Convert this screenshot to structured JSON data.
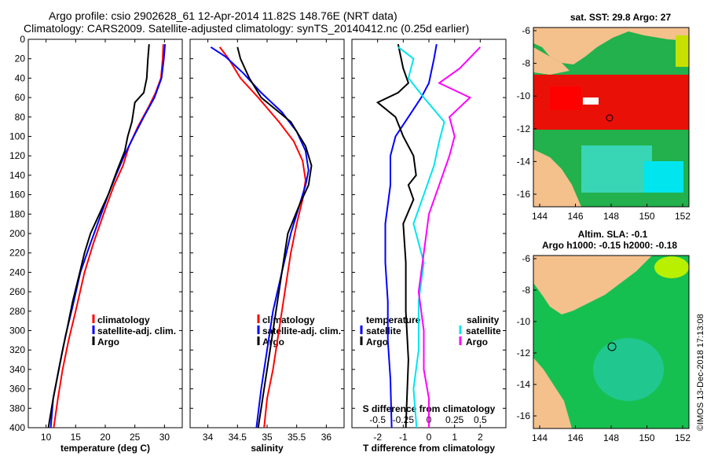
{
  "header": {
    "title_line1": "Argo profile: csio 2902628_61 12-Apr-2014 11.82S 148.76E (NRT data)",
    "title_line2": "Climatology: CARS2009. Satellite-adjusted climatology: synTS_20140412.nc (0.25d earlier)"
  },
  "colors": {
    "climatology": "#ff0000",
    "satellite": "#0000ff",
    "argo": "#000000",
    "salinity_satellite": "#00e5ee",
    "salinity_argo": "#ff00ff",
    "land": "#f4c08c"
  },
  "chart_data": [
    {
      "id": "temperature",
      "type": "line",
      "xlabel": "temperature (deg C)",
      "ylabel": "",
      "xlim": [
        7,
        33
      ],
      "ylim": [
        400,
        0
      ],
      "xticks": [
        "10",
        "15",
        "20",
        "25",
        "30"
      ],
      "xtick_values": [
        10,
        15,
        20,
        25,
        30
      ],
      "yticks": [
        "0",
        "20",
        "40",
        "60",
        "80",
        "100",
        "120",
        "140",
        "160",
        "180",
        "200",
        "220",
        "240",
        "260",
        "280",
        "300",
        "320",
        "340",
        "360",
        "380",
        "400"
      ],
      "ytick_values": [
        0,
        20,
        40,
        60,
        80,
        100,
        120,
        140,
        160,
        180,
        200,
        220,
        240,
        260,
        280,
        300,
        320,
        340,
        360,
        380,
        400
      ],
      "legend": [
        "climatology",
        "satellite-adj. clim.",
        "Argo"
      ],
      "series": [
        {
          "name": "climatology",
          "color": "#ff0000",
          "points": [
            [
              29.8,
              5
            ],
            [
              29.7,
              20
            ],
            [
              29.4,
              40
            ],
            [
              28.5,
              55
            ],
            [
              27.3,
              70
            ],
            [
              25.5,
              90
            ],
            [
              24.0,
              110
            ],
            [
              23.0,
              130
            ],
            [
              21.5,
              150
            ],
            [
              20.0,
              175
            ],
            [
              18.0,
              210
            ],
            [
              16.5,
              240
            ],
            [
              15.0,
              280
            ],
            [
              13.8,
              310
            ],
            [
              12.8,
              340
            ],
            [
              12.0,
              370
            ],
            [
              11.3,
              400
            ]
          ]
        },
        {
          "name": "satellite-adj. clim.",
          "color": "#0000ff",
          "points": [
            [
              30.1,
              5
            ],
            [
              29.9,
              20
            ],
            [
              29.5,
              40
            ],
            [
              28.3,
              60
            ],
            [
              26.5,
              80
            ],
            [
              24.8,
              100
            ],
            [
              23.2,
              120
            ],
            [
              21.8,
              140
            ],
            [
              20.5,
              160
            ],
            [
              19.0,
              185
            ],
            [
              17.5,
              210
            ],
            [
              15.8,
              240
            ],
            [
              14.5,
              275
            ],
            [
              13.3,
              305
            ],
            [
              12.3,
              335
            ],
            [
              11.2,
              370
            ],
            [
              10.8,
              400
            ]
          ]
        },
        {
          "name": "Argo",
          "color": "#000000",
          "points": [
            [
              27.4,
              5
            ],
            [
              27.2,
              20
            ],
            [
              27.0,
              40
            ],
            [
              26.5,
              55
            ],
            [
              25.0,
              65
            ],
            [
              24.5,
              85
            ],
            [
              23.8,
              100
            ],
            [
              23.3,
              115
            ],
            [
              22.0,
              135
            ],
            [
              20.5,
              160
            ],
            [
              19.0,
              180
            ],
            [
              17.5,
              200
            ],
            [
              16.5,
              220
            ],
            [
              15.5,
              245
            ],
            [
              14.5,
              270
            ],
            [
              13.5,
              300
            ],
            [
              12.8,
              320
            ],
            [
              12.0,
              345
            ],
            [
              11.2,
              370
            ],
            [
              10.4,
              400
            ]
          ]
        }
      ]
    },
    {
      "id": "salinity",
      "type": "line",
      "xlabel": "salinity",
      "xlim": [
        33.7,
        36.3
      ],
      "ylim": [
        400,
        0
      ],
      "xticks": [
        "34",
        "34.5",
        "35",
        "35.5",
        "36"
      ],
      "xtick_values": [
        34,
        34.5,
        35,
        35.5,
        36
      ],
      "legend": [
        "climatology",
        "satellite-adj. clim.",
        "Argo"
      ],
      "series": [
        {
          "name": "climatology",
          "color": "#ff0000",
          "points": [
            [
              34.2,
              8
            ],
            [
              34.35,
              20
            ],
            [
              34.55,
              40
            ],
            [
              34.85,
              60
            ],
            [
              35.2,
              85
            ],
            [
              35.45,
              105
            ],
            [
              35.6,
              125
            ],
            [
              35.65,
              145
            ],
            [
              35.6,
              165
            ],
            [
              35.5,
              190
            ],
            [
              35.4,
              220
            ],
            [
              35.3,
              260
            ],
            [
              35.2,
              300
            ],
            [
              35.1,
              340
            ],
            [
              35.0,
              370
            ],
            [
              34.95,
              400
            ]
          ]
        },
        {
          "name": "satellite-adj. clim.",
          "color": "#0000ff",
          "points": [
            [
              34.05,
              8
            ],
            [
              34.3,
              18
            ],
            [
              34.6,
              35
            ],
            [
              34.9,
              55
            ],
            [
              35.25,
              75
            ],
            [
              35.5,
              95
            ],
            [
              35.65,
              115
            ],
            [
              35.7,
              135
            ],
            [
              35.65,
              150
            ],
            [
              35.55,
              170
            ],
            [
              35.4,
              200
            ],
            [
              35.25,
              240
            ],
            [
              35.1,
              280
            ],
            [
              35.0,
              320
            ],
            [
              34.9,
              360
            ],
            [
              34.82,
              400
            ]
          ]
        },
        {
          "name": "Argo",
          "color": "#000000",
          "points": [
            [
              34.5,
              8
            ],
            [
              34.55,
              20
            ],
            [
              34.7,
              40
            ],
            [
              34.9,
              60
            ],
            [
              35.4,
              85
            ],
            [
              35.65,
              110
            ],
            [
              35.75,
              130
            ],
            [
              35.7,
              150
            ],
            [
              35.55,
              170
            ],
            [
              35.35,
              200
            ],
            [
              35.25,
              240
            ],
            [
              35.15,
              280
            ],
            [
              35.05,
              320
            ],
            [
              34.95,
              360
            ],
            [
              34.85,
              400
            ]
          ]
        }
      ]
    },
    {
      "id": "difference",
      "type": "line",
      "xlabel": "T difference from climatology",
      "xlabel_top": "S difference from climatology",
      "xlim": [
        -3,
        3
      ],
      "ylim": [
        400,
        0
      ],
      "xticks": [
        "-2",
        "-1",
        "0",
        "1",
        "2"
      ],
      "xtick_values": [
        -2,
        -1,
        0,
        1,
        2
      ],
      "sticks": [
        "-0.5",
        "-0.25",
        "0",
        "0.25",
        "0.5"
      ],
      "stick_values": [
        -0.5,
        -0.25,
        0,
        0.25,
        0.5
      ],
      "legend_left_title": "temperature",
      "legend_right_title": "salinity",
      "legend_left": [
        "satellite",
        "Argo"
      ],
      "legend_right": [
        "satellite",
        "Argo"
      ],
      "series": [
        {
          "name": "temperature satellite",
          "color": "#0000ff",
          "kind": "T",
          "points": [
            [
              0.3,
              5
            ],
            [
              0.2,
              20
            ],
            [
              0.0,
              45
            ],
            [
              -0.3,
              60
            ],
            [
              -0.8,
              80
            ],
            [
              -1.3,
              100
            ],
            [
              -1.5,
              120
            ],
            [
              -1.5,
              150
            ],
            [
              -1.7,
              190
            ],
            [
              -1.7,
              230
            ],
            [
              -1.6,
              270
            ],
            [
              -1.6,
              310
            ],
            [
              -1.5,
              350
            ],
            [
              -1.45,
              400
            ]
          ]
        },
        {
          "name": "temperature Argo",
          "color": "#000000",
          "kind": "T",
          "points": [
            [
              -1.2,
              5
            ],
            [
              -1.0,
              30
            ],
            [
              -0.8,
              45
            ],
            [
              -1.2,
              55
            ],
            [
              -2.0,
              65
            ],
            [
              -1.3,
              80
            ],
            [
              -1.0,
              100
            ],
            [
              -0.6,
              120
            ],
            [
              -0.5,
              140
            ],
            [
              -0.8,
              150
            ],
            [
              -0.6,
              165
            ],
            [
              -1.0,
              190
            ],
            [
              -0.9,
              230
            ],
            [
              -0.9,
              280
            ],
            [
              -0.8,
              330
            ],
            [
              -0.9,
              400
            ]
          ]
        },
        {
          "name": "salinity satellite",
          "color": "#00e5ee",
          "kind": "S",
          "points": [
            [
              -0.3,
              8
            ],
            [
              -0.15,
              20
            ],
            [
              -0.2,
              40
            ],
            [
              -0.05,
              60
            ],
            [
              0.15,
              85
            ],
            [
              0.1,
              105
            ],
            [
              0.05,
              130
            ],
            [
              -0.05,
              160
            ],
            [
              -0.15,
              190
            ],
            [
              -0.05,
              230
            ],
            [
              -0.1,
              270
            ],
            [
              -0.1,
              320
            ],
            [
              -0.15,
              360
            ],
            [
              -0.12,
              400
            ]
          ]
        },
        {
          "name": "salinity Argo",
          "color": "#ff00ff",
          "kind": "S",
          "points": [
            [
              0.5,
              8
            ],
            [
              0.3,
              30
            ],
            [
              0.1,
              45
            ],
            [
              0.4,
              60
            ],
            [
              0.2,
              80
            ],
            [
              0.25,
              100
            ],
            [
              0.2,
              120
            ],
            [
              0.1,
              150
            ],
            [
              0.0,
              180
            ],
            [
              -0.05,
              220
            ],
            [
              -0.1,
              260
            ],
            [
              -0.05,
              300
            ],
            [
              -0.05,
              340
            ],
            [
              0.0,
              370
            ],
            [
              0.0,
              400
            ]
          ]
        }
      ]
    }
  ],
  "maps": {
    "sst": {
      "title": "sat. SST: 29.8 Argo: 27",
      "xticks": [
        "144",
        "146",
        "148",
        "150",
        "152"
      ],
      "yticks": [
        "-6",
        "-8",
        "-10",
        "-12",
        "-14",
        "-16"
      ]
    },
    "sla": {
      "title_line1": "Altim. SLA: -0.1",
      "title_line2": "Argo h1000: -0.15 h2000: -0.18",
      "xticks": [
        "144",
        "146",
        "148",
        "150",
        "152"
      ],
      "yticks": [
        "-6",
        "-8",
        "-10",
        "-12",
        "-14",
        "-16"
      ]
    }
  },
  "credit": "©IMOS 13-Dec-2018 17:13:08"
}
